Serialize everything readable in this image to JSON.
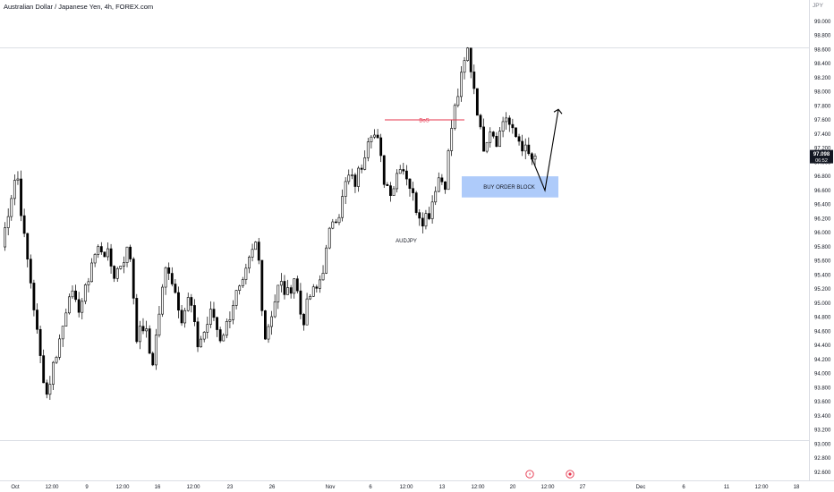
{
  "header": {
    "title": "Australian Dollar / Japanese Yen, 4h, FOREX.com",
    "currency": "JPY"
  },
  "price_label": {
    "price": "97.098",
    "countdown": "06:52"
  },
  "chart_data": {
    "type": "candlestick",
    "symbol": "AUDJPY",
    "ylim": [
      92.6,
      99.2
    ],
    "y_ticks": [
      "99.000",
      "98.800",
      "98.600",
      "98.400",
      "98.200",
      "98.000",
      "97.800",
      "97.600",
      "97.400",
      "97.200",
      "97.000",
      "96.800",
      "96.600",
      "96.400",
      "96.200",
      "96.000",
      "95.800",
      "95.600",
      "95.400",
      "95.200",
      "95.000",
      "94.800",
      "94.600",
      "94.400",
      "94.200",
      "94.000",
      "93.800",
      "93.600",
      "93.400",
      "93.200",
      "93.000",
      "92.800",
      "92.600"
    ],
    "x_ticks": [
      "Oct",
      "12:00",
      "9",
      "12:00",
      "16",
      "12:00",
      "23",
      "26",
      "Nov",
      "6",
      "12:00",
      "13",
      "12:00",
      "20",
      "12:00",
      "27",
      "Dec",
      "6",
      "11",
      "12:00",
      "18"
    ],
    "path": [
      95.8,
      96.4,
      96.9,
      95.9,
      95.2,
      94.3,
      93.7,
      94.2,
      94.6,
      95.2,
      94.9,
      95.1,
      95.6,
      95.8,
      95.7,
      95.4,
      95.6,
      95.8,
      94.5,
      94.7,
      94.1,
      94.9,
      95.6,
      95.2,
      94.8,
      95.1,
      94.4,
      94.6,
      94.9,
      94.5,
      94.7,
      95.1,
      95.2,
      95.6,
      95.9,
      94.5,
      94.9,
      95.3,
      95.1,
      95.4,
      94.7,
      95.1,
      95.2,
      95.6,
      96.2,
      96.3,
      96.8,
      96.7,
      97.0,
      97.5,
      97.3,
      96.7,
      96.6,
      97.0,
      96.8,
      96.4,
      96.2,
      96.3,
      96.8,
      96.7,
      97.6,
      98.1,
      98.6,
      98.0,
      97.2,
      97.5,
      97.3,
      97.7,
      97.4,
      97.3,
      97.1,
      97.0
    ],
    "current_price": 97.098,
    "annotations": {
      "bos_label": "BoS",
      "order_block_label": "BUY ORDER BLOCK",
      "symbol_label": "AUDJPY",
      "bos_level": 97.6,
      "order_block_range": [
        96.5,
        96.8
      ],
      "projection": [
        97.098,
        96.6,
        97.75
      ]
    },
    "colors": {
      "candle": "#000000",
      "bos": "#e5334b",
      "order_block": "#aecbfa",
      "last_price": "#131722"
    },
    "grid": false
  }
}
